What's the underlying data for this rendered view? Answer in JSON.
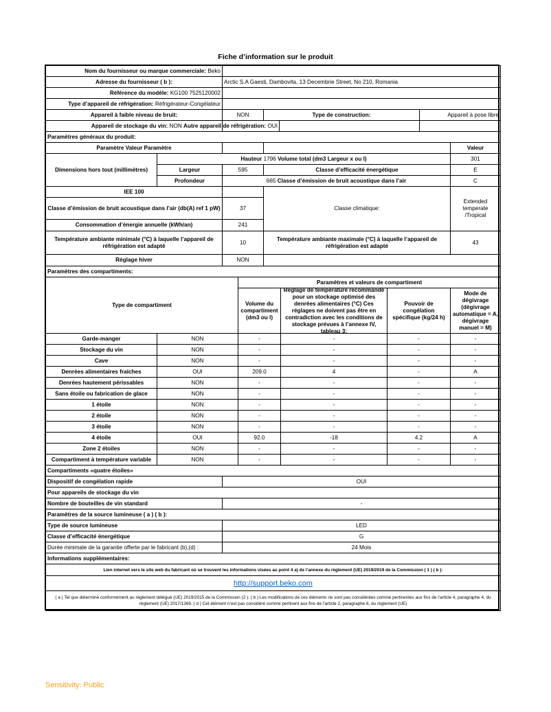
{
  "title": "Fiche d’information sur le produit",
  "supplier": {
    "name_label": "Nom du fournisseur ou marque commerciale:",
    "name_value": "Beko",
    "address_label": "Adresse du fournisseur ( b ):",
    "address_value": "Arctic S.A  Gaesti, Dambovita, 13 Decembrie Street, No 210, Romania",
    "model_label": "Référence du modèle:",
    "model_value": "KG100 7525120002",
    "type_label": "Type d’appareil de réfrigération:",
    "type_value": "Réfrigérateur-Congélateur",
    "low_noise_label": "Appareil à faible niveau de bruit:",
    "low_noise_value": "NON",
    "construction_label": "Type de construction:",
    "construction_value": "Appareil à pose libre",
    "wine_label": "Appareil de stockage du vin:",
    "wine_value": "NON",
    "other_label": "Autre appareil de réfrigération:",
    "other_value": "OUI"
  },
  "general": {
    "section": "Paramètres généraux du produit:",
    "param_header": "Paramètre  Valeur Paramètre",
    "valeur_header": "Valeur",
    "dimensions_label": "Dimensions hors tout (millimètres)",
    "hauteur_label": "Hauteur",
    "hauteur_value": "1796",
    "volume_label": "Volume total (dm3 Largeur x ou l)",
    "volume_value": "301",
    "largeur_label": "Largeur",
    "largeur_value": "595",
    "energy_class_label": "Classe d’efficacité énergétique",
    "energy_class_value": "E",
    "profondeur_label": "Profondeur",
    "profondeur_value": "665",
    "noise_class_label": "Classe d’émission de bruit acoustique dans l’air",
    "noise_class_value": "C",
    "iee_label": "IEE 100",
    "noise_db_label": "Classe d’émission de bruit acoustique dans l’air (db(A) ref 1 pW)",
    "noise_db_value": "37",
    "climate_label": "Classe climatique:",
    "climate_value": "Extended temperate /Tropical",
    "consumption_label": "Consommation d’énergie annuelle (kWh/an)",
    "consumption_value": "241",
    "tmin_label": "Température ambiante minimale (°C) à laquelle l’appareil de réfrigération est adapté",
    "tmin_value": "10",
    "tmax_label": "Température ambiante maximale (°C) à laquelle l’appareil de réfrigération est adapté",
    "tmax_value": "43",
    "winter_label": "Réglage hiver",
    "winter_value": "NON"
  },
  "compartments": {
    "section": "Paramètres des compartiments:",
    "type_header": "Type de compartiment",
    "group_header": "Paramètres et valeurs de compartiment",
    "col_volume": "Volume du compartiment (dm3 ou l)",
    "col_temp": "Réglage de température recommandé pour un stockage optimisé des denrées alimentaires (°C) Ces réglages ne doivent pas être en contradiction avec les conditions de stockage prévues à l’annexe IV, tableau 3;",
    "col_freeze": "Pouvoir de congélation spécifique (kg/24 h)",
    "col_defrost": "Mode de dégivrage (dégivrage automatique = A, dégivrage manuel = M)",
    "rows": [
      {
        "name": "Garde-manger",
        "present": "NON",
        "volume": "-",
        "temp": "-",
        "freeze": "-",
        "defrost": "-"
      },
      {
        "name": "Stockage du vin",
        "present": "NON",
        "volume": "-",
        "temp": "-",
        "freeze": "-",
        "defrost": "-"
      },
      {
        "name": "Cave",
        "present": "NON",
        "volume": "-",
        "temp": "-",
        "freeze": "-",
        "defrost": "-"
      },
      {
        "name": "Denrées alimentaires fraîches",
        "present": "OUI",
        "volume": "209.0",
        "temp": "4",
        "freeze": "-",
        "defrost": "A"
      },
      {
        "name": "Denrées hautement périssables",
        "present": "NON",
        "volume": "-",
        "temp": "-",
        "freeze": "-",
        "defrost": "-"
      },
      {
        "name": "Sans étoile ou fabrication de glace",
        "present": "NON",
        "volume": "-",
        "temp": "-",
        "freeze": "-",
        "defrost": "-"
      },
      {
        "name": "1 étoile",
        "present": "NON",
        "volume": "-",
        "temp": "-",
        "freeze": "-",
        "defrost": "-"
      },
      {
        "name": "2 étoile",
        "present": "NON",
        "volume": "-",
        "temp": "-",
        "freeze": "-",
        "defrost": "-"
      },
      {
        "name": "3 étoile",
        "present": "NON",
        "volume": "-",
        "temp": "-",
        "freeze": "-",
        "defrost": "-"
      },
      {
        "name": "4 étoile",
        "present": "OUI",
        "volume": "92.0",
        "temp": "-18",
        "freeze": "4.2",
        "defrost": "A"
      },
      {
        "name": "Zone 2 étoiles",
        "present": "NON",
        "volume": "-",
        "temp": "-",
        "freeze": "-",
        "defrost": "-"
      },
      {
        "name": "Compartiment à température variable",
        "present": "NON",
        "volume": "-",
        "temp": "-",
        "freeze": "-",
        "defrost": "-"
      }
    ]
  },
  "four_star": {
    "section": "Compartiments «quatre étoiles»",
    "fast_freeze_label": "Dispositif de congélation rapide",
    "fast_freeze_value": "OUI"
  },
  "wine": {
    "section": "Pour appareils de stockage du vin",
    "bottles_label": "Nombre de bouteilles de vin standard",
    "bottles_value": "-"
  },
  "light": {
    "section": "Paramètres de la source lumineuse ( a ) ( b ):",
    "type_label": "Type de source lumineuse",
    "type_value": "LED",
    "class_label": "Classe d’efficacité énergétique",
    "class_value": "G"
  },
  "warranty": {
    "label": "Durée minimale de la garantie offerte par le fabricant  (b),(d) :",
    "value": "24 Mois"
  },
  "info": {
    "section": "Informations supplémentaires:",
    "link_label": "Lien internet vers le site web du fabricant où se trouvent les informations visées au point 4 a) de l’annexe du règlement (UE) 2019/2019 de la Commission ( 1 ) ( b ):",
    "link": "http://support.beko.com",
    "footnote": "( a ) Tel que déterminé conformément au règlement délégué (UE) 2019/2015 de la Commission (2 ).  ( b ) Les modifications de ces éléments ne sont pas considérées comme pertinentes aux fins de l’article 4, paragraphe 4, du règlement (UE) 2017/1369. ( d ) Cet élément n’est pas considéré comme pertinent aux fins de l’article 2, paragraphe 6, du règlement (UE)"
  },
  "sensitivity": "Sensitivity: Public",
  "colors": {
    "link": "#0563c1",
    "sensitivity": "#f5a01a"
  }
}
